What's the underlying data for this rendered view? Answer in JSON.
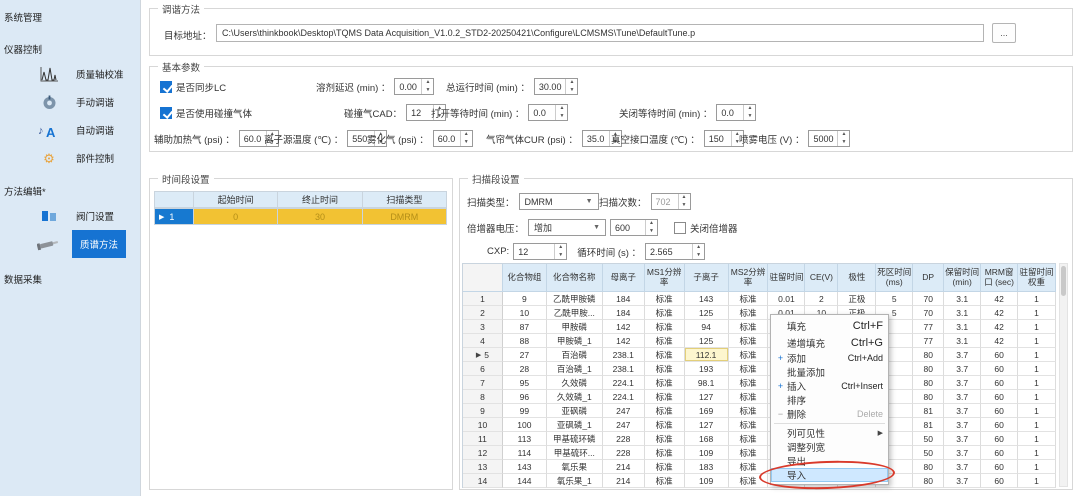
{
  "sidebar": {
    "groups": [
      {
        "label": "系统管理",
        "items": []
      },
      {
        "label": "仪器控制",
        "items": [
          {
            "id": "mass-calibration",
            "label": "质量轴校准",
            "icon": "chromatogram-icon"
          },
          {
            "id": "manual-tune",
            "label": "手动调谐",
            "icon": "knob-icon"
          },
          {
            "id": "auto-tune",
            "label": "自动调谐",
            "icon": "auto-tune-icon"
          },
          {
            "id": "component-control",
            "label": "部件控制",
            "icon": "gear-icon"
          }
        ]
      },
      {
        "label": "方法编辑*",
        "items": [
          {
            "id": "valve-settings",
            "label": "阀门设置",
            "icon": "valve-icon"
          },
          {
            "id": "ms-method",
            "label": "质谱方法",
            "icon": "syringe-icon",
            "selected": true
          }
        ]
      },
      {
        "label": "数据采集",
        "items": []
      }
    ]
  },
  "tune_method": {
    "title": "调谐方法",
    "target_label": "目标地址：",
    "target_path": "C:\\Users\\thinkbook\\Desktop\\TQMS Data Acquisition_V1.0.2_STD2-20250421\\Configure\\LCMSMS\\Tune\\DefaultTune.p",
    "browse_label": "..."
  },
  "basic_params": {
    "title": "基本参数",
    "sync_lc": {
      "label": "是否同步LC",
      "checked": true
    },
    "solvent_delay": {
      "label": "溶剂延迟 (min) ：",
      "value": "0.00"
    },
    "total_runtime": {
      "label": "总运行时间 (min) ：",
      "value": "30.00"
    },
    "use_collision": {
      "label": "是否使用碰撞气体",
      "checked": true
    },
    "cad": {
      "label": "碰撞气CAD：",
      "value": "12"
    },
    "open_wait": {
      "label": "打开等待时间 (min) ：",
      "value": "0.0"
    },
    "close_wait": {
      "label": "关闭等待时间 (min) ：",
      "value": "0.0"
    },
    "aux_gas": {
      "label": "辅助加热气 (psi) ：",
      "value": "60.0"
    },
    "source_temp": {
      "label": "离子源温度 (℃) ：",
      "value": "550"
    },
    "nebulizer_gas": {
      "label": "雾化气 (psi) ：",
      "value": "60.0"
    },
    "curtain_gas": {
      "label": "气帘气体CUR (psi) ：",
      "value": "35.0"
    },
    "interface_temp": {
      "label": "真空接口温度 (℃) ：",
      "value": "150"
    },
    "spray_voltage": {
      "label": "喷雾电压 (V) ：",
      "value": "5000"
    }
  },
  "time_segments": {
    "title": "时间段设置",
    "columns": [
      "起始时间",
      "终止时间",
      "扫描类型"
    ],
    "rows": [
      {
        "num": "1",
        "start": "0",
        "end": "30",
        "scan_type": "DMRM",
        "selected": true
      }
    ]
  },
  "scan_settings": {
    "title": "扫描段设置",
    "scan_type": {
      "label": "扫描类型：",
      "value": "DMRM"
    },
    "scan_count": {
      "label": "扫描次数：",
      "value": "702",
      "disabled": true
    },
    "multiplier": {
      "label": "倍增器电压：",
      "mode": "增加",
      "value": "600"
    },
    "multiplier_off": {
      "label": "关闭倍增器",
      "checked": false
    },
    "cxp": {
      "label": "CXP:",
      "value": "12"
    },
    "cycle_time": {
      "label": "循环时间 (s) ：",
      "value": "2.565"
    }
  },
  "mrm_table": {
    "columns": [
      "化合物组",
      "化合物名称",
      "母离子",
      "MS1分辨率",
      "子离子",
      "MS2分辨率",
      "驻留时间",
      "CE(V)",
      "极性",
      "死区时间(ms)",
      "DP",
      "保留时间 (min)",
      "MRM窗口 (sec)",
      "驻留时间权重"
    ],
    "rows": [
      {
        "num": "1",
        "cells": [
          "9",
          "乙酰甲胺磷",
          "184",
          "标准",
          "143",
          "标准",
          "0.01",
          "2",
          "正极",
          "5",
          "70",
          "3.1",
          "42",
          "1"
        ]
      },
      {
        "num": "2",
        "cells": [
          "10",
          "乙酰甲胺...",
          "184",
          "标准",
          "125",
          "标准",
          "0.01",
          "10",
          "正极",
          "5",
          "70",
          "3.1",
          "42",
          "1"
        ]
      },
      {
        "num": "3",
        "cells": [
          "87",
          "甲胺磷",
          "142",
          "标准",
          "94",
          "标准",
          "0.01",
          "",
          "",
          "",
          "77",
          "3.1",
          "42",
          "1"
        ]
      },
      {
        "num": "4",
        "cells": [
          "88",
          "甲胺磷_1",
          "142",
          "标准",
          "125",
          "标准",
          "0.01",
          "",
          "",
          "",
          "77",
          "3.1",
          "42",
          "1"
        ]
      },
      {
        "num": "5",
        "cells": [
          "27",
          "百治磷",
          "238.1",
          "标准",
          "112.1",
          "标准",
          "0.01",
          "",
          "",
          "",
          "80",
          "3.7",
          "60",
          "1"
        ],
        "selected": true,
        "edited_col": 4
      },
      {
        "num": "6",
        "cells": [
          "28",
          "百治磷_1",
          "238.1",
          "标准",
          "193",
          "标准",
          "0.01",
          "",
          "",
          "",
          "80",
          "3.7",
          "60",
          "1"
        ]
      },
      {
        "num": "7",
        "cells": [
          "95",
          "久效磷",
          "224.1",
          "标准",
          "98.1",
          "标准",
          "0.01",
          "",
          "",
          "",
          "80",
          "3.7",
          "60",
          "1"
        ]
      },
      {
        "num": "8",
        "cells": [
          "96",
          "久效磷_1",
          "224.1",
          "标准",
          "127",
          "标准",
          "0.01",
          "",
          "",
          "",
          "80",
          "3.7",
          "60",
          "1"
        ]
      },
      {
        "num": "9",
        "cells": [
          "99",
          "亚砜磷",
          "247",
          "标准",
          "169",
          "标准",
          "0.01",
          "",
          "",
          "",
          "81",
          "3.7",
          "60",
          "1"
        ]
      },
      {
        "num": "10",
        "cells": [
          "100",
          "亚砜磷_1",
          "247",
          "标准",
          "127",
          "标准",
          "0.01",
          "",
          "",
          "",
          "81",
          "3.7",
          "60",
          "1"
        ]
      },
      {
        "num": "11",
        "cells": [
          "113",
          "甲基硫环磷",
          "228",
          "标准",
          "168",
          "标准",
          "0.01",
          "",
          "",
          "",
          "50",
          "3.7",
          "60",
          "1"
        ]
      },
      {
        "num": "12",
        "cells": [
          "114",
          "甲基硫环...",
          "228",
          "标准",
          "109",
          "标准",
          "0.01",
          "",
          "",
          "",
          "50",
          "3.7",
          "60",
          "1"
        ]
      },
      {
        "num": "13",
        "cells": [
          "143",
          "氧乐果",
          "214",
          "标准",
          "183",
          "标准",
          "0.01",
          "",
          "",
          "",
          "80",
          "3.7",
          "60",
          "1"
        ]
      },
      {
        "num": "14",
        "cells": [
          "144",
          "氧乐果_1",
          "214",
          "标准",
          "109",
          "标准",
          "0.01",
          "",
          "",
          "",
          "80",
          "3.7",
          "60",
          "1"
        ]
      }
    ]
  },
  "context_menu": {
    "items": [
      {
        "id": "fill",
        "label": "填充",
        "shortcut": "Ctrl+F",
        "large": true
      },
      {
        "id": "increment-fill",
        "label": "递增填充",
        "shortcut": "Ctrl+G",
        "large": true
      },
      {
        "id": "add",
        "label": "添加",
        "shortcut": "Ctrl+Add",
        "icon": "plus-icon"
      },
      {
        "id": "batch-add",
        "label": "批量添加"
      },
      {
        "id": "insert",
        "label": "插入",
        "shortcut": "Ctrl+Insert",
        "icon": "plus-icon"
      },
      {
        "id": "sort",
        "label": "排序"
      },
      {
        "id": "delete",
        "label": "删除",
        "shortcut": "Delete",
        "icon": "minus-icon",
        "disabled": true
      },
      {
        "separator": true
      },
      {
        "id": "column-visibility",
        "label": "列可见性",
        "submenu": true
      },
      {
        "id": "adjust-column-width",
        "label": "调整列宽"
      },
      {
        "id": "export",
        "label": "导出"
      },
      {
        "id": "import",
        "label": "导入",
        "highlighted": true,
        "circled": true
      }
    ]
  }
}
